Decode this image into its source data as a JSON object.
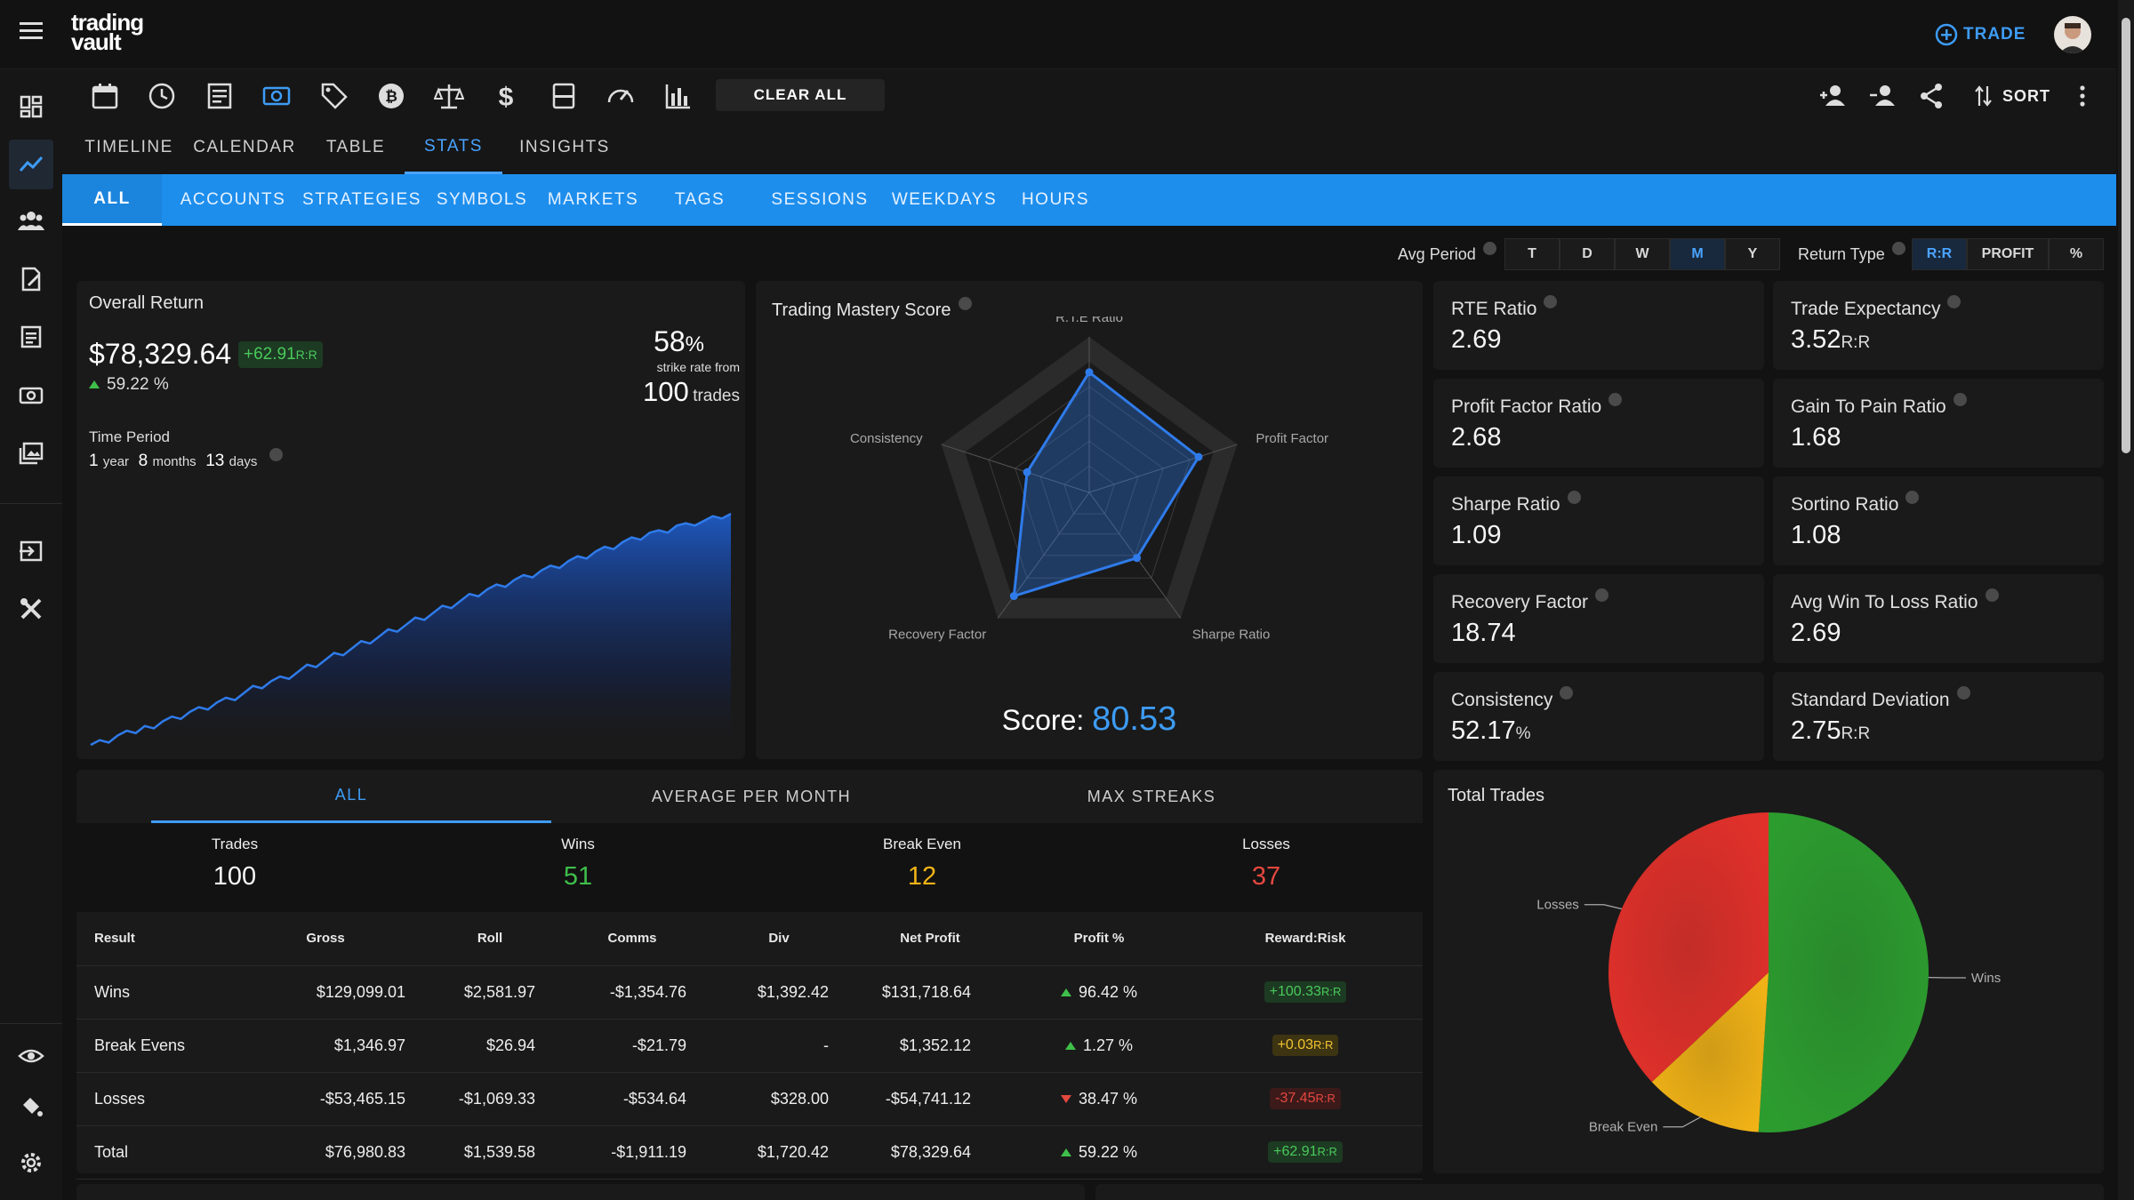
{
  "app": {
    "logo_line1": "trading",
    "logo_line2": "vault",
    "trade_label": "TRADE"
  },
  "toolbar": {
    "clear_all_label": "CLEAR ALL",
    "sort_label": "SORT"
  },
  "view_tabs": [
    {
      "label": "TIMELINE",
      "active": false
    },
    {
      "label": "CALENDAR",
      "active": false
    },
    {
      "label": "TABLE",
      "active": false
    },
    {
      "label": "STATS",
      "active": true
    },
    {
      "label": "INSIGHTS",
      "active": false
    }
  ],
  "filter_tabs": [
    {
      "label": "ALL",
      "active": true
    },
    {
      "label": "ACCOUNTS"
    },
    {
      "label": "STRATEGIES"
    },
    {
      "label": "SYMBOLS"
    },
    {
      "label": "MARKETS"
    },
    {
      "label": "TAGS"
    },
    {
      "label": "SESSIONS"
    },
    {
      "label": "WEEKDAYS"
    },
    {
      "label": "HOURS"
    }
  ],
  "avg_period": {
    "label": "Avg Period",
    "options": [
      "T",
      "D",
      "W",
      "M",
      "Y"
    ],
    "selected": "M"
  },
  "return_type": {
    "label": "Return Type",
    "options": [
      "R:R",
      "PROFIT",
      "%"
    ],
    "selected": "R:R"
  },
  "overall": {
    "title": "Overall Return",
    "amount": "$78,329.64",
    "rr_badge": "+62.91",
    "rr_unit": "R:R",
    "pct": "59.22",
    "pct_unit": "%",
    "strike_rate": "58",
    "strike_unit": "%",
    "strike_caption": "strike rate from",
    "trades_count": "100",
    "trades_word": "trades",
    "time_period_label": "Time Period",
    "tp_years": "1",
    "tp_years_unit": "year",
    "tp_months": "8",
    "tp_months_unit": "months",
    "tp_days": "13",
    "tp_days_unit": "days"
  },
  "mastery": {
    "title": "Trading Mastery Score",
    "axes": [
      "R.T.E Ratio",
      "Profit Factor",
      "Sharpe Ratio",
      "Recovery Factor",
      "Consistency"
    ],
    "values": [
      0.92,
      0.88,
      0.62,
      0.98,
      0.5
    ],
    "score_label": "Score:",
    "score": "80.53"
  },
  "metrics": [
    {
      "label": "RTE Ratio",
      "value": "2.69",
      "unit": ""
    },
    {
      "label": "Trade Expectancy",
      "value": "3.52",
      "unit": "R:R"
    },
    {
      "label": "Profit Factor Ratio",
      "value": "2.68",
      "unit": ""
    },
    {
      "label": "Gain To Pain Ratio",
      "value": "1.68",
      "unit": ""
    },
    {
      "label": "Sharpe Ratio",
      "value": "1.09",
      "unit": ""
    },
    {
      "label": "Sortino Ratio",
      "value": "1.08",
      "unit": ""
    },
    {
      "label": "Recovery Factor",
      "value": "18.74",
      "unit": ""
    },
    {
      "label": "Avg Win To Loss Ratio",
      "value": "2.69",
      "unit": ""
    },
    {
      "label": "Consistency",
      "value": "52.17",
      "unit": "%"
    },
    {
      "label": "Standard Deviation",
      "value": "2.75",
      "unit": "R:R"
    }
  ],
  "breakdown": {
    "tabs": [
      {
        "label": "ALL",
        "active": true
      },
      {
        "label": "AVERAGE PER MONTH"
      },
      {
        "label": "MAX STREAKS"
      }
    ],
    "summary": [
      {
        "label": "Trades",
        "value": "100",
        "color": "#f5f5f5"
      },
      {
        "label": "Wins",
        "value": "51",
        "color": "#3fbf4a"
      },
      {
        "label": "Break Even",
        "value": "12",
        "color": "#f2b417"
      },
      {
        "label": "Losses",
        "value": "37",
        "color": "#e5483f"
      }
    ],
    "columns": [
      "Result",
      "Gross",
      "Roll",
      "Comms",
      "Div",
      "Net Profit",
      "Profit %",
      "Reward:Risk"
    ],
    "rows": [
      {
        "result": "Wins",
        "gross": "$129,099.01",
        "roll": "$2,581.97",
        "comms": "-$1,354.76",
        "div": "$1,392.42",
        "net": "$131,718.64",
        "pct": "96.42",
        "dir": "up",
        "rr": "+100.33",
        "rr_color": "green"
      },
      {
        "result": "Break Evens",
        "gross": "$1,346.97",
        "roll": "$26.94",
        "comms": "-$21.79",
        "div": "-",
        "net": "$1,352.12",
        "pct": "1.27",
        "dir": "up",
        "rr": "+0.03",
        "rr_color": "yellow"
      },
      {
        "result": "Losses",
        "gross": "-$53,465.15",
        "roll": "-$1,069.33",
        "comms": "-$534.64",
        "div": "$328.00",
        "net": "-$54,741.12",
        "pct": "38.47",
        "dir": "down",
        "rr": "-37.45",
        "rr_color": "red"
      },
      {
        "result": "Total",
        "gross": "$76,980.83",
        "roll": "$1,539.58",
        "comms": "-$1,911.19",
        "div": "$1,720.42",
        "net": "$78,329.64",
        "pct": "59.22",
        "dir": "up",
        "rr": "+62.91",
        "rr_color": "green"
      }
    ],
    "pct_unit": "%",
    "rr_unit": "R:R"
  },
  "total_trades": {
    "title": "Total Trades",
    "slices": [
      {
        "label": "Wins",
        "value": 51,
        "color": "#2c9c2f"
      },
      {
        "label": "Break Even",
        "value": 12,
        "color": "#f0b216"
      },
      {
        "label": "Losses",
        "value": 37,
        "color": "#e0302a"
      }
    ]
  },
  "equity_curve": [
    2,
    4,
    3,
    6,
    8,
    7,
    10,
    9,
    12,
    14,
    13,
    16,
    18,
    17,
    20,
    22,
    21,
    24,
    27,
    26,
    29,
    31,
    30,
    33,
    36,
    35,
    38,
    41,
    40,
    43,
    46,
    45,
    48,
    51,
    50,
    53,
    56,
    55,
    58,
    61,
    60,
    63,
    66,
    65,
    68,
    70,
    69,
    72,
    74,
    73,
    76,
    78,
    77,
    80,
    82,
    81,
    84,
    86,
    85,
    88,
    90,
    89,
    92,
    93,
    92,
    95,
    96,
    95,
    97,
    99,
    98,
    100
  ]
}
